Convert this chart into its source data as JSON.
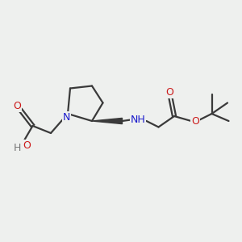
{
  "background_color": "#eef0ee",
  "bond_color": "#3a3a3a",
  "N_color": "#1a1acc",
  "O_color": "#cc1a1a",
  "H_color": "#777777",
  "line_width": 1.6,
  "figsize": [
    3.0,
    3.0
  ],
  "dpi": 100,
  "xlim": [
    0,
    10
  ],
  "ylim": [
    0,
    10
  ]
}
